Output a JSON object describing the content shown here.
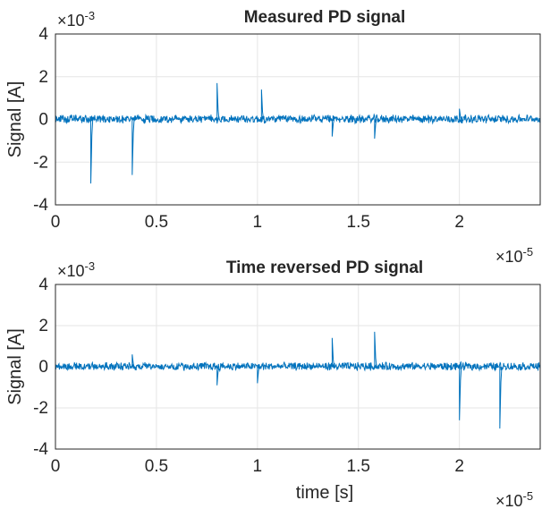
{
  "chart_data": [
    {
      "type": "line",
      "title": "Measured PD signal",
      "xlabel": "",
      "ylabel": "Signal [A]",
      "xlim": [
        0,
        2.4e-05
      ],
      "ylim": [
        -0.004,
        0.004
      ],
      "x_multiplier_label": "×10",
      "x_multiplier_exp": "-5",
      "y_multiplier_label": "×10",
      "y_multiplier_exp": "-3",
      "x_ticks": [
        0,
        5e-06,
        1e-05,
        1.5e-05,
        2e-05
      ],
      "x_tick_labels": [
        "0",
        "0.5",
        "1",
        "1.5",
        "2"
      ],
      "y_ticks": [
        -0.004,
        -0.002,
        0,
        0.002,
        0.004
      ],
      "y_tick_labels": [
        "-4",
        "-2",
        "0",
        "2",
        "4"
      ],
      "grid": true,
      "series": [
        {
          "color": "#0072bd",
          "noise_amplitude": 0.00022,
          "pulses": [
            {
              "x": 1.75e-06,
              "y": -0.003
            },
            {
              "x": 3.8e-06,
              "y": -0.0026
            },
            {
              "x": 8e-06,
              "y": 0.0017
            },
            {
              "x": 1.02e-05,
              "y": 0.0014
            },
            {
              "x": 1.37e-05,
              "y": -0.0008
            },
            {
              "x": 1.58e-05,
              "y": -0.0009
            },
            {
              "x": 2e-05,
              "y": 0.0005
            }
          ]
        }
      ]
    },
    {
      "type": "line",
      "title": "Time reversed PD signal",
      "xlabel": "time [s]",
      "ylabel": "Signal [A]",
      "xlim": [
        0,
        2.4e-05
      ],
      "ylim": [
        -0.004,
        0.004
      ],
      "x_multiplier_label": "×10",
      "x_multiplier_exp": "-5",
      "y_multiplier_label": "×10",
      "y_multiplier_exp": "-3",
      "x_ticks": [
        0,
        5e-06,
        1e-05,
        1.5e-05,
        2e-05
      ],
      "x_tick_labels": [
        "0",
        "0.5",
        "1",
        "1.5",
        "2"
      ],
      "y_ticks": [
        -0.004,
        -0.002,
        0,
        0.002,
        0.004
      ],
      "y_tick_labels": [
        "-4",
        "-2",
        "0",
        "2",
        "4"
      ],
      "grid": true,
      "series": [
        {
          "color": "#0072bd",
          "noise_amplitude": 0.00022,
          "pulses": [
            {
              "x": 3.8e-06,
              "y": 0.0006
            },
            {
              "x": 8e-06,
              "y": -0.0009
            },
            {
              "x": 1e-05,
              "y": -0.0008
            },
            {
              "x": 1.37e-05,
              "y": 0.0014
            },
            {
              "x": 1.58e-05,
              "y": 0.0017
            },
            {
              "x": 2e-05,
              "y": -0.0026
            },
            {
              "x": 2.2e-05,
              "y": -0.003
            }
          ]
        }
      ]
    }
  ]
}
